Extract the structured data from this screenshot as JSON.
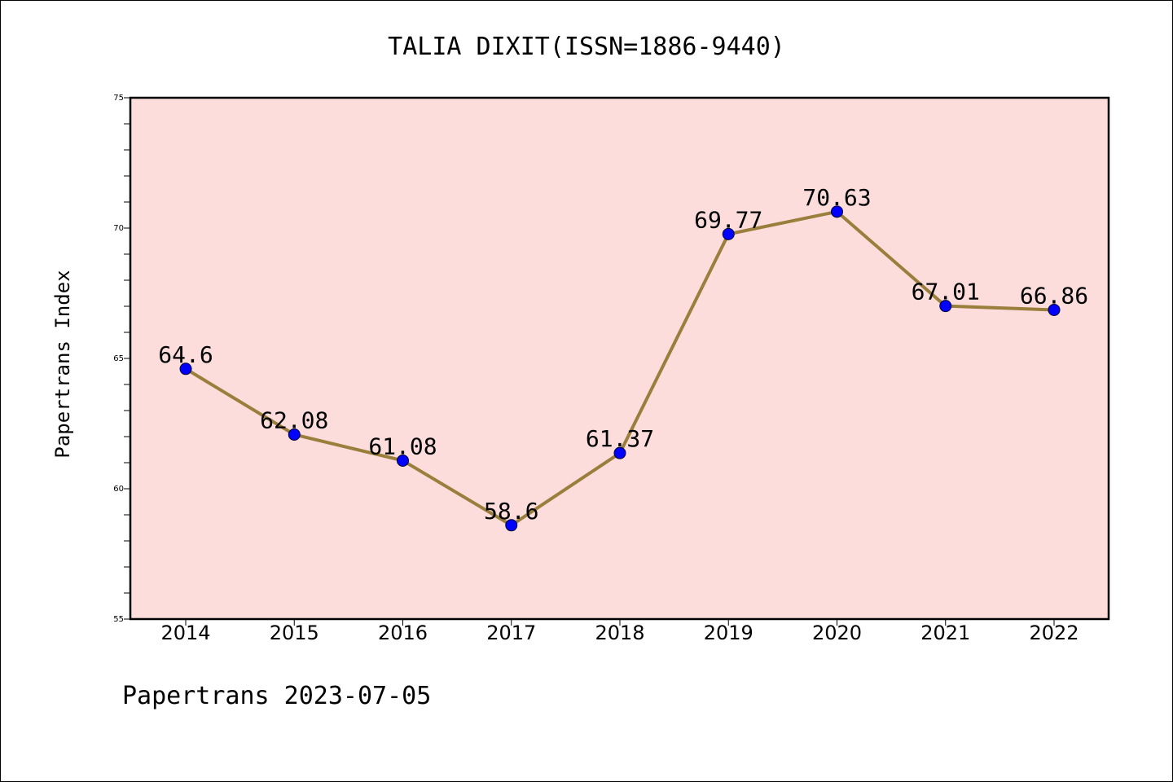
{
  "chart_data": {
    "type": "line",
    "title": "TALIA DIXIT(ISSN=1886-9440)",
    "ylabel": "Papertrans Index",
    "xlabel": "",
    "categories": [
      "2014",
      "2015",
      "2016",
      "2017",
      "2018",
      "2019",
      "2020",
      "2021",
      "2022"
    ],
    "values": [
      64.6,
      62.08,
      61.08,
      58.6,
      61.37,
      69.77,
      70.63,
      67.01,
      66.86
    ],
    "data_labels": [
      "64.6",
      "62.08",
      "61.08",
      "58.6",
      "61.37",
      "69.77",
      "70.63",
      "67.01",
      "66.86"
    ],
    "ylim": [
      55,
      75
    ],
    "yticks": [
      "55",
      "60",
      "65",
      "70",
      "75"
    ],
    "grid": false,
    "colors": {
      "plot_background": "#fddcdc",
      "line": "#9a7e3c",
      "marker": "#0000ff"
    },
    "footer": "Papertrans 2023-07-05"
  }
}
